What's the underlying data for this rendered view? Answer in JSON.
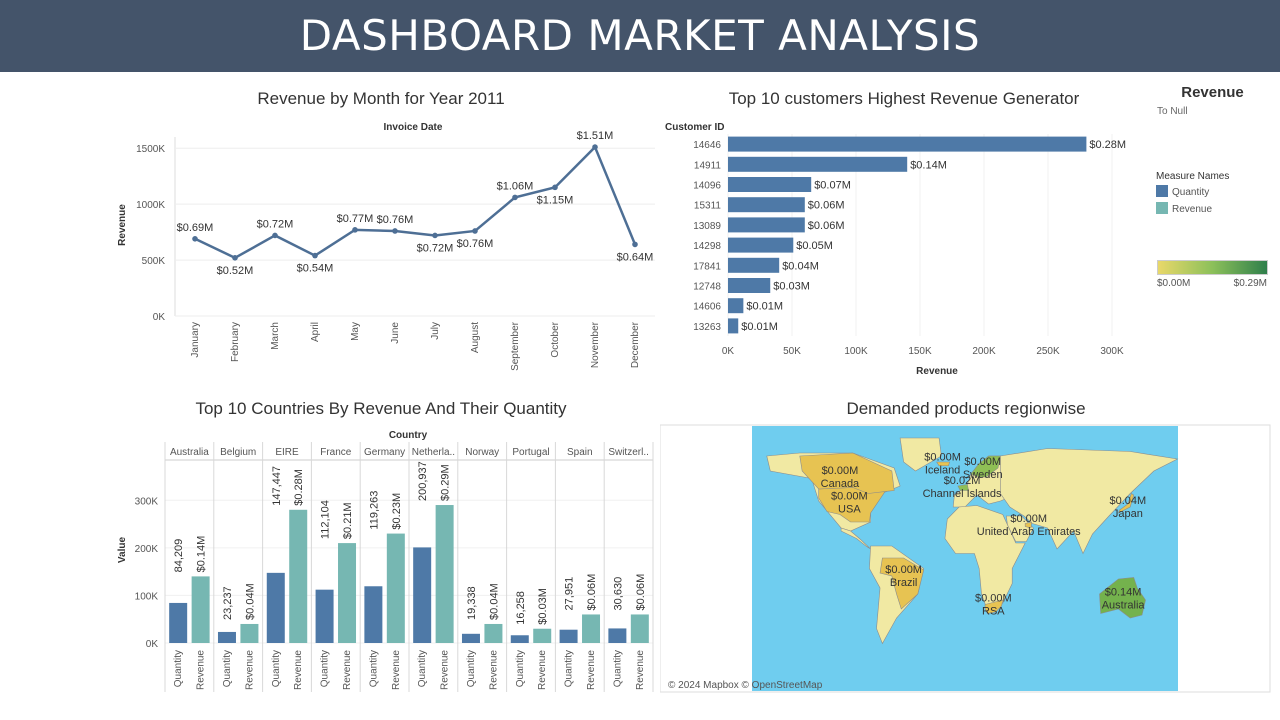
{
  "header": {
    "title": "DASHBOARD MARKET ANALYSIS"
  },
  "colors": {
    "header_bg": "#44546a",
    "quantity": "#4e79a7",
    "revenue": "#76b7b2",
    "ocean": "#6fcdef",
    "land": "#f1e9a3",
    "highlight": "#e7c352"
  },
  "legend": {
    "title": "Revenue",
    "subtitle": "To Null",
    "measure_names_title": "Measure Names",
    "items": [
      {
        "label": "Quantity",
        "color": "#4e79a7"
      },
      {
        "label": "Revenue",
        "color": "#76b7b2"
      }
    ],
    "gradient_min": "$0.00M",
    "gradient_max": "$0.29M"
  },
  "chart_data": [
    {
      "type": "line",
      "title": "Revenue by Month for Year 2011",
      "top_label": "Invoice Date",
      "ylabel": "Revenue",
      "categories": [
        "January",
        "February",
        "March",
        "April",
        "May",
        "June",
        "July",
        "August",
        "September",
        "October",
        "November",
        "December"
      ],
      "values": [
        690000,
        520000,
        720000,
        540000,
        770000,
        760000,
        720000,
        760000,
        1060000,
        1150000,
        1510000,
        640000
      ],
      "data_labels": [
        "$0.69M",
        "$0.52M",
        "$0.72M",
        "$0.54M",
        "$0.77M",
        "$0.76M",
        "$0.72M",
        "$0.76M",
        "$1.06M",
        "$1.15M",
        "$1.51M",
        "$0.64M"
      ],
      "yticks": [
        "0K",
        "500K",
        "1000K",
        "1500K"
      ],
      "ylim": [
        0,
        1600000
      ]
    },
    {
      "type": "bar",
      "orientation": "horizontal",
      "title": "Top 10 customers Highest Revenue Generator",
      "ylabel": "Customer ID",
      "xlabel": "Revenue",
      "categories": [
        "14646",
        "14911",
        "14096",
        "15311",
        "13089",
        "14298",
        "17841",
        "12748",
        "14606",
        "13263"
      ],
      "values": [
        280000,
        140000,
        65000,
        60000,
        60000,
        51000,
        40000,
        33000,
        12000,
        8000
      ],
      "data_labels": [
        "$0.28M",
        "$0.14M",
        "$0.07M",
        "$0.06M",
        "$0.06M",
        "$0.05M",
        "$0.04M",
        "$0.03M",
        "$0.01M",
        "$0.01M"
      ],
      "xticks": [
        "0K",
        "50K",
        "100K",
        "150K",
        "200K",
        "250K",
        "300K"
      ],
      "xlim": [
        0,
        300000
      ]
    },
    {
      "type": "bar",
      "title": "Top 10 Countries By Revenue And  Their Quantity",
      "top_label": "Country",
      "ylabel": "Value",
      "categories": [
        "Australia",
        "Belgium",
        "EIRE",
        "France",
        "Germany",
        "Netherla..",
        "Norway",
        "Portugal",
        "Spain",
        "Switzerl.."
      ],
      "sub_categories": [
        "Quantity",
        "Revenue"
      ],
      "series": [
        {
          "name": "Quantity",
          "values": [
            84209,
            23237,
            147447,
            112104,
            119263,
            200937,
            19338,
            16258,
            27951,
            30630
          ]
        },
        {
          "name": "Revenue",
          "values": [
            140000,
            40000,
            280000,
            210000,
            230000,
            290000,
            40000,
            30000,
            60000,
            60000
          ]
        }
      ],
      "quantity_labels": [
        "84,209",
        "23,237",
        "147,447",
        "112,104",
        "119,263",
        "200,937",
        "19,338",
        "16,258",
        "27,951",
        "30,630"
      ],
      "revenue_labels": [
        "$0.14M",
        "$0.04M",
        "$0.28M",
        "$0.21M",
        "$0.23M",
        "$0.29M",
        "$0.04M",
        "$0.03M",
        "$0.06M",
        "$0.06M"
      ],
      "yticks": [
        "0K",
        "100K",
        "200K",
        "300K"
      ],
      "ylim": [
        0,
        330000
      ]
    }
  ],
  "map": {
    "title": "Demanded products regionwise",
    "attribution": "© 2024 Mapbox © OpenStreetMap",
    "labels": [
      {
        "value": "$0.00M",
        "name": "Canada",
        "lat": 56,
        "lon": -106
      },
      {
        "value": "$0.00M",
        "name": "USA",
        "lat": 39,
        "lon": -98
      },
      {
        "value": "$0.00M",
        "name": "Iceland",
        "lat": 65,
        "lon": -19
      },
      {
        "value": "$0.02M",
        "name": "Channel Islands",
        "lat": 49.5,
        "lon": -2.5
      },
      {
        "value": "$0.00M",
        "name": "Sweden",
        "lat": 62,
        "lon": 15
      },
      {
        "value": "$0.00M",
        "name": "United Arab Emirates",
        "lat": 24,
        "lon": 54
      },
      {
        "value": "$0.04M",
        "name": "Japan",
        "lat": 36,
        "lon": 138
      },
      {
        "value": "$0.00M",
        "name": "Brazil",
        "lat": -10,
        "lon": -52
      },
      {
        "value": "$0.00M",
        "name": "RSA",
        "lat": -29,
        "lon": 24
      },
      {
        "value": "$0.14M",
        "name": "Australia",
        "lat": -25,
        "lon": 134
      }
    ]
  }
}
